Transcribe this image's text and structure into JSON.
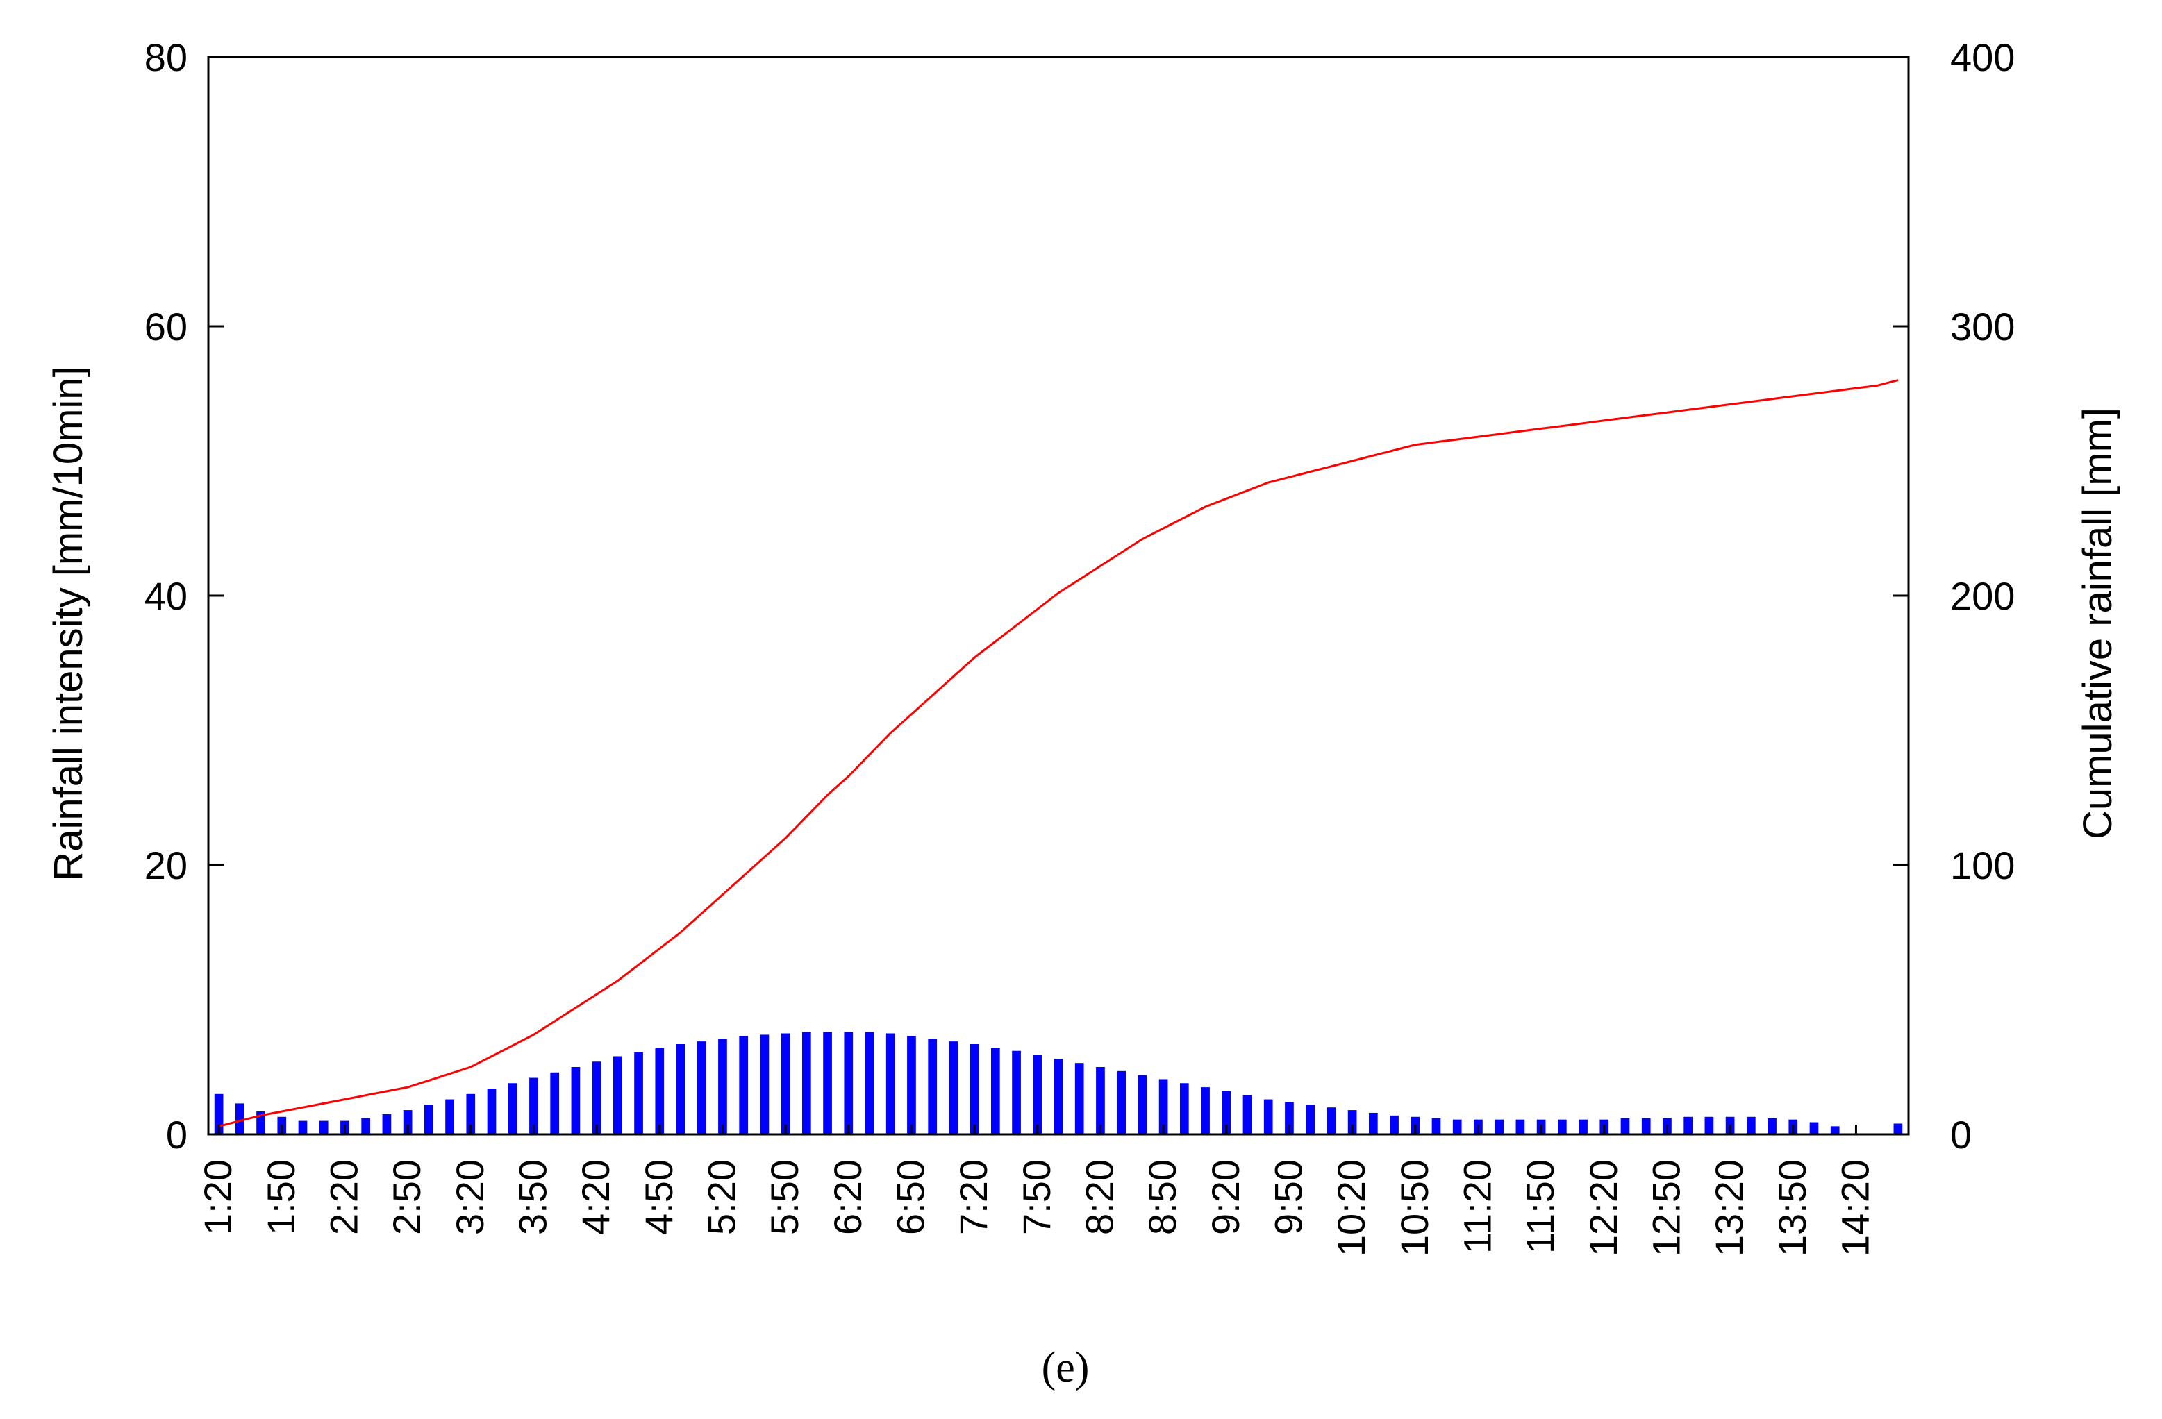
{
  "caption": "(e)",
  "chart_data": {
    "type": "bar",
    "ylabel": "Rainfall intensity [mm/10min]",
    "ylabel_right": "Cumulative rainfall [mm]",
    "xlabel": "",
    "ylim": [
      0,
      80
    ],
    "ylim_right": [
      0,
      400
    ],
    "yticks": [
      "0",
      "20",
      "40",
      "60",
      "80"
    ],
    "yticks_right": [
      "0",
      "100",
      "200",
      "300",
      "400"
    ],
    "x_tick_labels": [
      "1:20",
      "1:50",
      "2:20",
      "2:50",
      "3:20",
      "3:50",
      "4:20",
      "4:50",
      "5:20",
      "5:50",
      "6:20",
      "6:50",
      "7:20",
      "7:50",
      "8:20",
      "8:50",
      "9:20",
      "9:50",
      "10:20",
      "10:50",
      "11:20",
      "11:50",
      "12:20",
      "12:50",
      "13:20",
      "13:50",
      "14:20"
    ],
    "grid": false,
    "legend": "none",
    "colors": {
      "bars": "#0000ff",
      "line": "#ff0000",
      "axes": "#000000"
    },
    "categories": [
      "1:20",
      "1:30",
      "1:40",
      "1:50",
      "2:00",
      "2:10",
      "2:20",
      "2:30",
      "2:40",
      "2:50",
      "3:00",
      "3:10",
      "3:20",
      "3:30",
      "3:40",
      "3:50",
      "4:00",
      "4:10",
      "4:20",
      "4:30",
      "4:40",
      "4:50",
      "5:00",
      "5:10",
      "5:20",
      "5:30",
      "5:40",
      "5:50",
      "6:00",
      "6:10",
      "6:20",
      "6:30",
      "6:40",
      "6:50",
      "7:00",
      "7:10",
      "7:20",
      "7:30",
      "7:40",
      "7:50",
      "8:00",
      "8:10",
      "8:20",
      "8:30",
      "8:40",
      "8:50",
      "9:00",
      "9:10",
      "9:20",
      "9:30",
      "9:40",
      "9:50",
      "10:00",
      "10:10",
      "10:20",
      "10:30",
      "10:40",
      "10:50",
      "11:00",
      "11:10",
      "11:20",
      "11:30",
      "11:40",
      "11:50",
      "12:00",
      "12:10",
      "12:20",
      "12:30",
      "12:40",
      "12:50",
      "13:00",
      "13:10",
      "13:20",
      "13:30",
      "13:40",
      "13:50",
      "14:00",
      "14:10",
      "14:20",
      "14:30",
      "14:40"
    ],
    "series": [
      {
        "axis": "left",
        "kind": "bar",
        "values": [
          3.0,
          2.3,
          1.7,
          1.3,
          1.0,
          1.0,
          1.0,
          1.2,
          1.5,
          1.8,
          2.2,
          2.6,
          3.0,
          3.4,
          3.8,
          4.2,
          4.6,
          5.0,
          5.4,
          5.8,
          6.1,
          6.4,
          6.7,
          6.9,
          7.1,
          7.3,
          7.4,
          7.5,
          7.6,
          7.6,
          7.6,
          7.6,
          7.5,
          7.3,
          7.1,
          6.9,
          6.7,
          6.4,
          6.2,
          5.9,
          5.6,
          5.3,
          5.0,
          4.7,
          4.4,
          4.1,
          3.8,
          3.5,
          3.2,
          2.9,
          2.6,
          2.4,
          2.2,
          2.0,
          1.8,
          1.6,
          1.4,
          1.3,
          1.2,
          1.1,
          1.1,
          1.1,
          1.1,
          1.1,
          1.1,
          1.1,
          1.1,
          1.2,
          1.2,
          1.2,
          1.3,
          1.3,
          1.3,
          1.3,
          1.2,
          1.1,
          0.9,
          0.6,
          0.0,
          0.0,
          0.8
        ]
      },
      {
        "axis": "right",
        "kind": "line",
        "values": [
          3,
          5,
          7,
          8.5,
          10,
          11.5,
          13,
          14.5,
          16,
          17.5,
          20,
          22.5,
          25,
          29,
          33,
          37,
          42,
          47,
          52,
          57,
          63,
          69,
          75,
          82,
          89,
          96,
          103,
          110,
          118,
          126,
          133,
          141,
          149,
          156,
          163,
          170,
          177,
          183,
          189,
          195,
          201,
          206,
          211,
          216,
          221,
          225,
          229,
          233,
          236,
          239,
          242,
          244,
          246,
          248,
          250,
          252,
          254,
          256,
          257,
          258,
          259,
          260,
          261,
          262,
          263,
          264,
          265,
          266,
          267,
          268,
          269,
          270,
          271,
          272,
          273,
          274,
          275,
          276,
          277,
          278,
          280
        ]
      }
    ]
  }
}
